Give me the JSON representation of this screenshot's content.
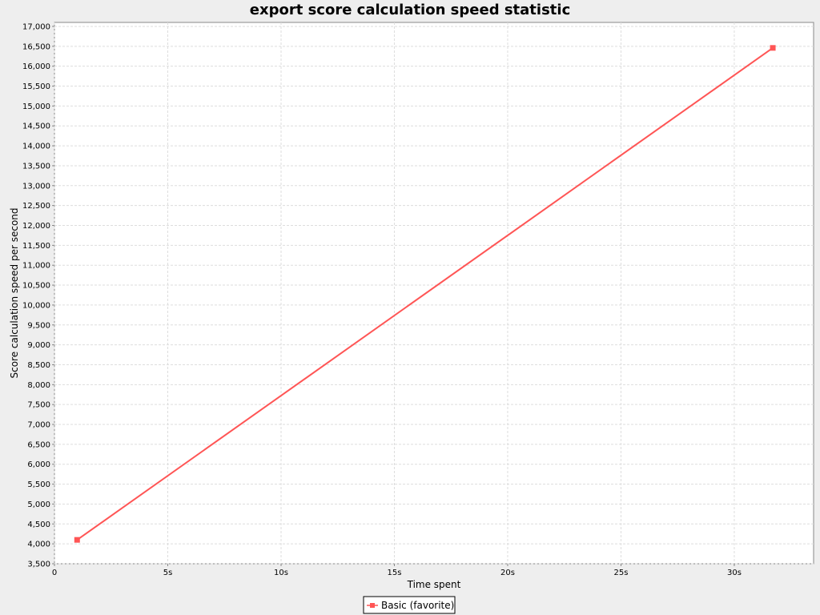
{
  "chart_data": {
    "type": "line",
    "title": "export score calculation speed statistic",
    "xlabel": "Time spent",
    "ylabel": "Score calculation speed per second",
    "xlim": [
      0,
      33.5
    ],
    "ylim": [
      3500,
      17100
    ],
    "x_ticks": [
      {
        "value": 0,
        "label": "0"
      },
      {
        "value": 5,
        "label": "5s"
      },
      {
        "value": 10,
        "label": "10s"
      },
      {
        "value": 15,
        "label": "15s"
      },
      {
        "value": 20,
        "label": "20s"
      },
      {
        "value": 25,
        "label": "25s"
      },
      {
        "value": 30,
        "label": "30s"
      }
    ],
    "y_ticks": [
      {
        "value": 3500,
        "label": "3,500"
      },
      {
        "value": 4000,
        "label": "4,000"
      },
      {
        "value": 4500,
        "label": "4,500"
      },
      {
        "value": 5000,
        "label": "5,000"
      },
      {
        "value": 5500,
        "label": "5,500"
      },
      {
        "value": 6000,
        "label": "6,000"
      },
      {
        "value": 6500,
        "label": "6,500"
      },
      {
        "value": 7000,
        "label": "7,000"
      },
      {
        "value": 7500,
        "label": "7,500"
      },
      {
        "value": 8000,
        "label": "8,000"
      },
      {
        "value": 8500,
        "label": "8,500"
      },
      {
        "value": 9000,
        "label": "9,000"
      },
      {
        "value": 9500,
        "label": "9,500"
      },
      {
        "value": 10000,
        "label": "10,000"
      },
      {
        "value": 10500,
        "label": "10,500"
      },
      {
        "value": 11000,
        "label": "11,000"
      },
      {
        "value": 11500,
        "label": "11,500"
      },
      {
        "value": 12000,
        "label": "12,000"
      },
      {
        "value": 12500,
        "label": "12,500"
      },
      {
        "value": 13000,
        "label": "13,000"
      },
      {
        "value": 13500,
        "label": "13,500"
      },
      {
        "value": 14000,
        "label": "14,000"
      },
      {
        "value": 14500,
        "label": "14,500"
      },
      {
        "value": 15000,
        "label": "15,000"
      },
      {
        "value": 15500,
        "label": "15,500"
      },
      {
        "value": 16000,
        "label": "16,000"
      },
      {
        "value": 16500,
        "label": "16,500"
      },
      {
        "value": 17000,
        "label": "17,000"
      }
    ],
    "series": [
      {
        "name": "Basic (favorite)",
        "color": "#ff5555",
        "marker": "square",
        "points": [
          {
            "x": 1.0,
            "y": 4100
          },
          {
            "x": 31.7,
            "y": 16460
          }
        ]
      }
    ],
    "grid": true,
    "legend_position": "bottom"
  }
}
